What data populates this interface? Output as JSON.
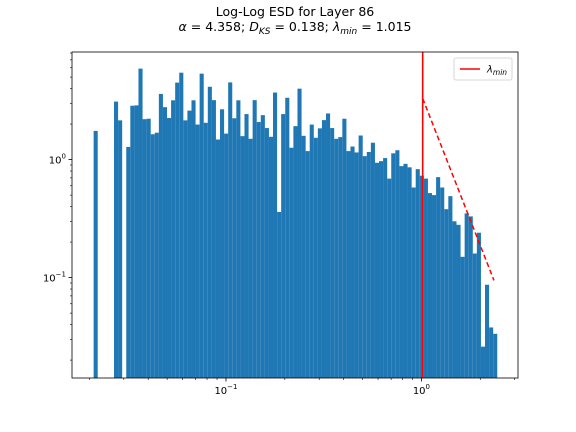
{
  "chart_data": {
    "type": "bar",
    "title": "Log-Log ESD for Layer 86",
    "subtitle": {
      "alpha_symbol": "α",
      "alpha_value": "= 4.358;",
      "dks_symbol": "D",
      "dks_sub": "KS",
      "dks_value": "= 0.138;",
      "lambda_symbol": "λ",
      "lambda_sub": "min",
      "lambda_value": "= 1.015"
    },
    "x_scale": "log",
    "y_scale": "log",
    "xlim": [
      0.0163,
      3.12
    ],
    "ylim": [
      0.0141,
      8.16
    ],
    "x_ticks": [
      {
        "value": 0.1,
        "base": "10",
        "exp": "−1"
      },
      {
        "value": 1,
        "base": "10",
        "exp": "0"
      }
    ],
    "y_ticks": [
      {
        "value": 0.1,
        "base": "10",
        "exp": "−1"
      },
      {
        "value": 1,
        "base": "10",
        "exp": "0"
      }
    ],
    "bins": {
      "log_start": -1.698,
      "log_end": 0.388,
      "count": 100,
      "color": "#1f77b4",
      "values": [
        0,
        1.75,
        0,
        0,
        0,
        0,
        3.1,
        2.15,
        0,
        1.28,
        2.86,
        2.88,
        5.9,
        2.2,
        2.22,
        1.64,
        1.69,
        3.6,
        2.78,
        2.25,
        3.18,
        4.49,
        5.45,
        2.15,
        2.6,
        3.18,
        1.98,
        5.35,
        2.05,
        4.14,
        3.19,
        1.48,
        2.67,
        1.66,
        4.51,
        2.24,
        3.18,
        1.58,
        2.43,
        1.5,
        3.19,
        2.08,
        2.38,
        1.85,
        1.56,
        3.7,
        0.36,
        2.43,
        3.34,
        1.26,
        1.92,
        3.99,
        1.59,
        1.18,
        1.98,
        1.53,
        1.84,
        2.16,
        2.46,
        1.85,
        1.5,
        1.55,
        2.22,
        1.18,
        1.29,
        1.15,
        1.6,
        1.07,
        1.16,
        1.39,
        0.94,
        0.97,
        1.03,
        0.69,
        1.13,
        1.2,
        0.88,
        0.92,
        0.86,
        0.58,
        0.83,
        0.73,
        0.69,
        0.52,
        0.5,
        0.71,
        0.58,
        0.38,
        0.49,
        0.3,
        0.28,
        0.15,
        0.35,
        0.33,
        0.16,
        0.24,
        0.026,
        0.087,
        0.0378,
        0.0334
      ],
      "note_values": "heights of the histogram bars (bin densities); 0 = empty bin"
    },
    "visible_bins": [],
    "lambda_min_line": {
      "x": 1.015,
      "color": "#ff0000",
      "label_symbol": "λ",
      "label_sub": "min"
    },
    "fit_line": {
      "x": [
        1.015,
        2.35
      ],
      "y": [
        3.3,
        0.0948
      ],
      "color": "#ff0000",
      "style": "dashed"
    },
    "legend": {
      "position": "top-right"
    },
    "grid": false
  }
}
